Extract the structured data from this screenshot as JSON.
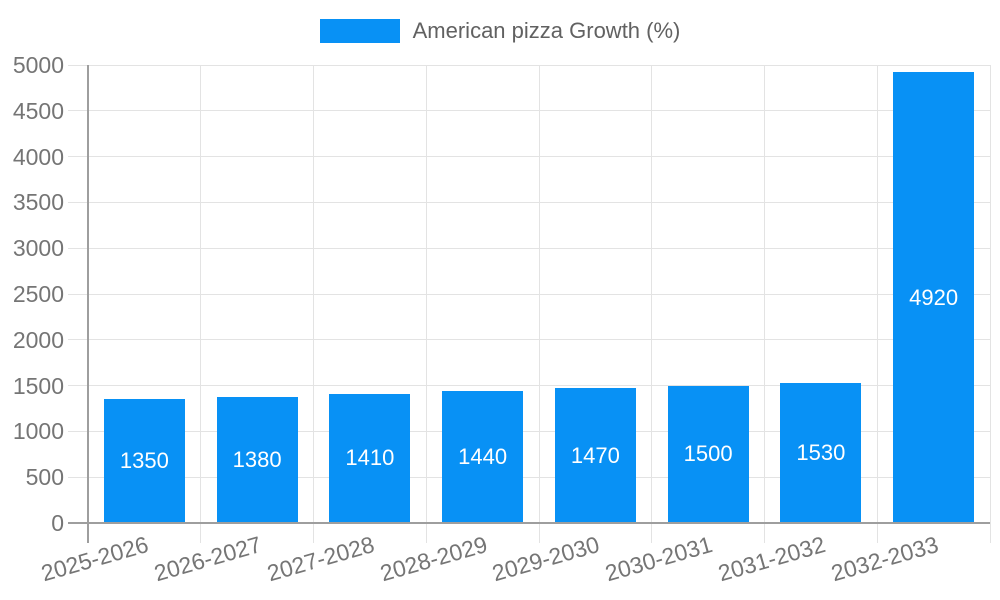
{
  "chart_data": {
    "type": "bar",
    "title": "American pizza Growth (%)",
    "categories": [
      "2025-2026",
      "2026-2027",
      "2027-2028",
      "2028-2029",
      "2029-2030",
      "2030-2031",
      "2031-2032",
      "2032-2033"
    ],
    "values": [
      1350,
      1380,
      1410,
      1440,
      1470,
      1500,
      1530,
      4920
    ],
    "xlabel": "",
    "ylabel": "",
    "ylim": [
      0,
      5000
    ],
    "ytick_step": 500,
    "grid": true,
    "legend_position": "top",
    "bar_color": "#0891f5",
    "colors": {
      "grid": "#e3e3e3",
      "axis": "#9e9e9e",
      "tick_label": "#757575",
      "value_label": "#ffffff",
      "legend_text": "#616161"
    }
  }
}
